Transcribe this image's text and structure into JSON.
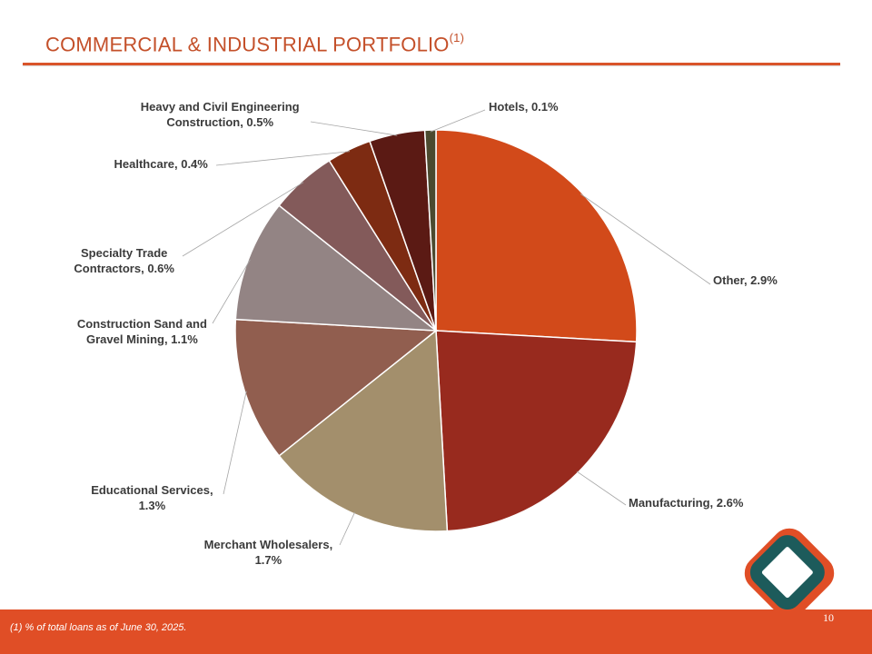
{
  "slide": {
    "title": "COMMERCIAL & INDUSTRIAL PORTFOLIO",
    "title_note": "(1)",
    "footnote": "(1)  % of total loans as of June 30, 2025.",
    "page_number": "10"
  },
  "chart_data": {
    "type": "pie",
    "title": "",
    "start_angle_deg": 0,
    "direction": "clockwise",
    "unit": "% of total loans",
    "slices": [
      {
        "label_lines": [
          "Other, 2.9%"
        ],
        "value": 2.9,
        "color": "#d24a1a"
      },
      {
        "label_lines": [
          "Manufacturing, 2.6%"
        ],
        "value": 2.6,
        "color": "#982a1e"
      },
      {
        "label_lines": [
          "Merchant Wholesalers,",
          "1.7%"
        ],
        "value": 1.7,
        "color": "#a38f6c"
      },
      {
        "label_lines": [
          "Educational Services,",
          "1.3%"
        ],
        "value": 1.3,
        "color": "#915e4f"
      },
      {
        "label_lines": [
          "Construction Sand and",
          "Gravel Mining, 1.1%"
        ],
        "value": 1.1,
        "color": "#938484"
      },
      {
        "label_lines": [
          "Specialty Trade",
          "Contractors, 0.6%"
        ],
        "value": 0.6,
        "color": "#835a5a"
      },
      {
        "label_lines": [
          "Healthcare, 0.4%"
        ],
        "value": 0.4,
        "color": "#7d2b12"
      },
      {
        "label_lines": [
          "Heavy and Civil Engineering",
          "Construction, 0.5%"
        ],
        "value": 0.5,
        "color": "#5b1a14"
      },
      {
        "label_lines": [
          "Hotels, 0.1%"
        ],
        "value": 0.1,
        "color": "#4b4a2f"
      }
    ]
  },
  "logo": {
    "outer_color": "#e04e26",
    "inner_color": "#1d5b5b"
  }
}
